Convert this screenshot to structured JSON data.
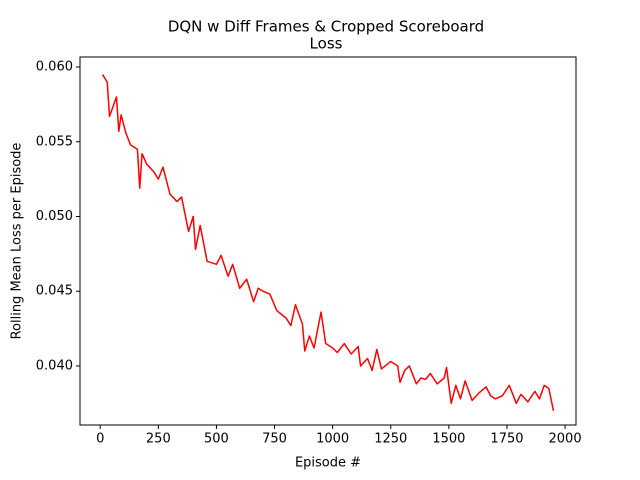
{
  "chart_data": {
    "type": "line",
    "title": "DQN w Diff Frames & Cropped Scoreboard",
    "subtitle": "Loss",
    "x_label": "Episode #",
    "y_label": "Rolling Mean Loss per Episode",
    "x": [
      10,
      30,
      40,
      70,
      80,
      90,
      110,
      130,
      160,
      170,
      180,
      200,
      230,
      250,
      270,
      300,
      330,
      350,
      380,
      400,
      410,
      430,
      460,
      500,
      520,
      550,
      570,
      600,
      630,
      660,
      680,
      700,
      730,
      760,
      800,
      820,
      840,
      870,
      880,
      900,
      920,
      950,
      970,
      1000,
      1020,
      1050,
      1080,
      1110,
      1120,
      1150,
      1170,
      1190,
      1210,
      1250,
      1280,
      1290,
      1310,
      1330,
      1360,
      1380,
      1400,
      1420,
      1450,
      1480,
      1490,
      1510,
      1530,
      1550,
      1570,
      1600,
      1630,
      1660,
      1680,
      1700,
      1730,
      1760,
      1790,
      1810,
      1840,
      1870,
      1890,
      1910,
      1930,
      1950
    ],
    "series": [
      {
        "color": "red",
        "values": [
          0.0595,
          0.059,
          0.0567,
          0.058,
          0.0557,
          0.0568,
          0.0556,
          0.0548,
          0.0545,
          0.0519,
          0.0542,
          0.0535,
          0.053,
          0.0525,
          0.0533,
          0.0515,
          0.051,
          0.0513,
          0.049,
          0.05,
          0.0478,
          0.0494,
          0.047,
          0.0468,
          0.0474,
          0.046,
          0.0468,
          0.0452,
          0.0458,
          0.0443,
          0.0452,
          0.045,
          0.0448,
          0.0437,
          0.0432,
          0.0427,
          0.0441,
          0.0428,
          0.041,
          0.042,
          0.0412,
          0.0436,
          0.0415,
          0.0412,
          0.0409,
          0.0415,
          0.0408,
          0.0413,
          0.04,
          0.0405,
          0.0397,
          0.0411,
          0.0398,
          0.0403,
          0.04,
          0.0389,
          0.0397,
          0.04,
          0.0388,
          0.0392,
          0.0391,
          0.0395,
          0.0388,
          0.0392,
          0.0399,
          0.0375,
          0.0387,
          0.0378,
          0.039,
          0.0377,
          0.0382,
          0.0386,
          0.038,
          0.0378,
          0.038,
          0.0387,
          0.0375,
          0.0381,
          0.0376,
          0.0383,
          0.0378,
          0.0387,
          0.0385,
          0.037
        ]
      }
    ],
    "xlim": [
      -87,
      2047
    ],
    "ylim": [
      0.03605,
      0.06067
    ],
    "xticks": [
      0,
      250,
      500,
      750,
      1000,
      1250,
      1500,
      1750,
      2000
    ],
    "yticks": [
      {
        "value": 0.04,
        "label": "0.040"
      },
      0.045,
      {
        "value": 0.05,
        "label": "0.050"
      },
      0.055,
      {
        "value": 0.06,
        "label": "0.060"
      }
    ]
  }
}
